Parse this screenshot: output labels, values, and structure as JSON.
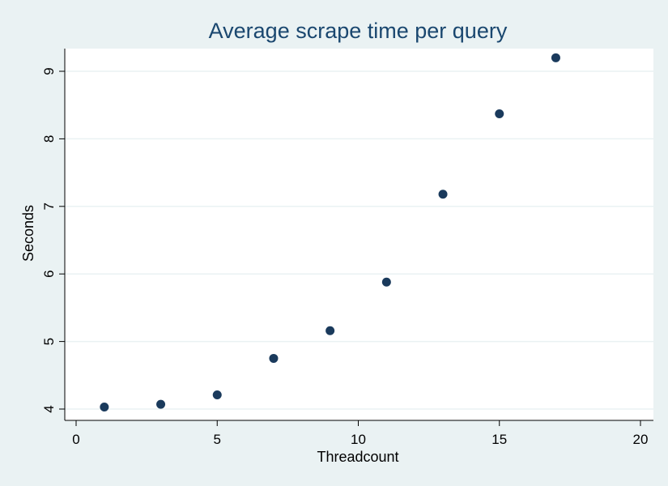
{
  "chart_data": {
    "type": "scatter",
    "title": "Average scrape time per query",
    "xlabel": "Threadcount",
    "ylabel": "Seconds",
    "xlim": [
      0,
      20
    ],
    "ylim": [
      4,
      9
    ],
    "x_ticks": [
      0,
      5,
      10,
      15,
      20
    ],
    "y_ticks": [
      4,
      5,
      6,
      7,
      8,
      9
    ],
    "grid": "horizontal",
    "series": [
      {
        "color": "#1a3a5c",
        "points": [
          {
            "x": 1,
            "y": 4.03
          },
          {
            "x": 3,
            "y": 4.07
          },
          {
            "x": 5,
            "y": 4.21
          },
          {
            "x": 7,
            "y": 4.75
          },
          {
            "x": 9,
            "y": 5.16
          },
          {
            "x": 11,
            "y": 5.88
          },
          {
            "x": 13,
            "y": 7.18
          },
          {
            "x": 15,
            "y": 8.37
          },
          {
            "x": 17,
            "y": 9.2
          }
        ]
      }
    ]
  },
  "colors": {
    "background": "#eaf2f3",
    "plot_area": "#ffffff",
    "title": "#1a476f",
    "grid": "#eaf2f3"
  }
}
